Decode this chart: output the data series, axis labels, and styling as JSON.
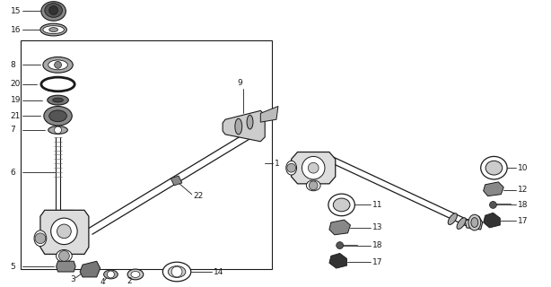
{
  "bg_color": "#ffffff",
  "lc": "#1a1a1a",
  "fig_width": 6.14,
  "fig_height": 3.2,
  "dpi": 100
}
